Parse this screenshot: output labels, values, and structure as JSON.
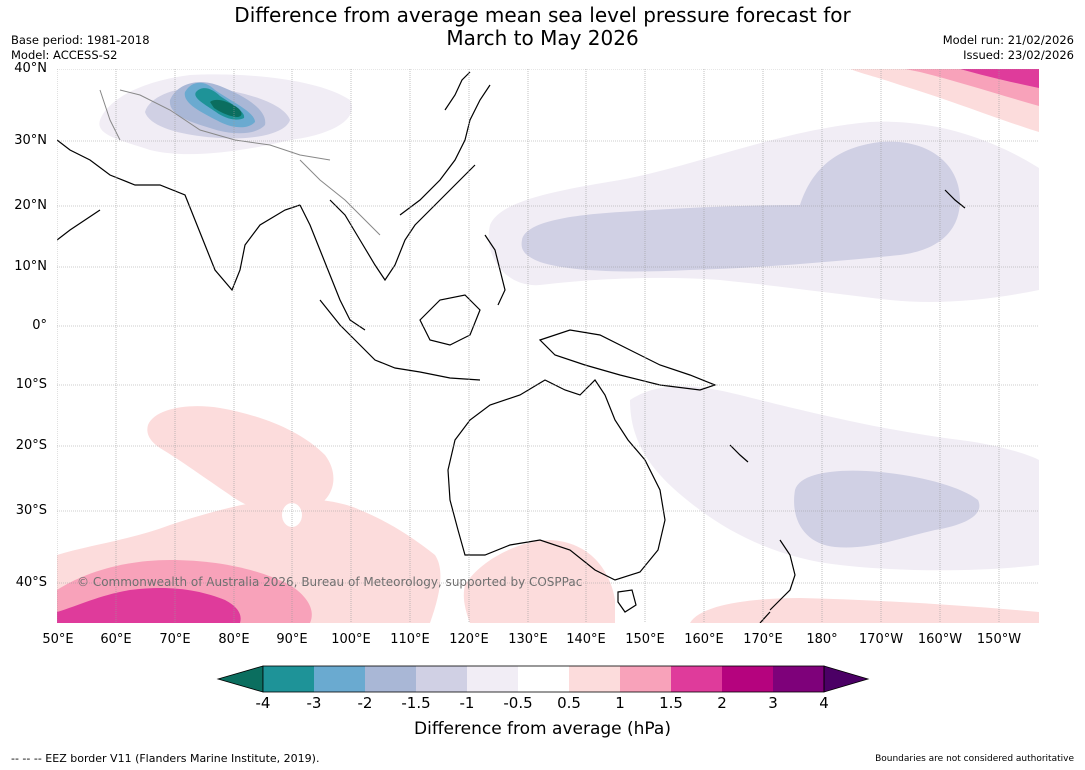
{
  "title_line1": "Difference from average mean sea level pressure forecast for",
  "title_line2": "March to May 2026",
  "base_period": "Base period: 1981-2018",
  "model": "Model: ACCESS-S2",
  "model_run": "Model run: 21/02/2026",
  "issued": "Issued: 23/02/2026",
  "copyright": "© Commonwealth of Australia 2026, Bureau of Meteorology, supported by COSPPac",
  "lat_labels": [
    "40°N",
    "30°N",
    "20°N",
    "10°N",
    "0°",
    "10°S",
    "20°S",
    "30°S",
    "40°S"
  ],
  "lon_labels": [
    "50°E",
    "60°E",
    "70°E",
    "80°E",
    "90°E",
    "100°E",
    "110°E",
    "120°E",
    "130°E",
    "140°E",
    "150°E",
    "160°E",
    "170°E",
    "180°",
    "170°W",
    "160°W",
    "150°W"
  ],
  "colorbar": {
    "title": "Difference from average (hPa)",
    "tick_labels": [
      "-4",
      "-3",
      "-2",
      "-1.5",
      "-1",
      "-0.5",
      "0.5",
      "1",
      "1.5",
      "2",
      "3",
      "4"
    ],
    "colors": {
      "below_min": "#0b6e5f",
      "m4_m3": "#1e9398",
      "m3_m2": "#6aaad0",
      "m2_m15": "#a9b7d6",
      "m15_m1": "#d0d0e4",
      "m1_m05": "#f1edf5",
      "m05_05": "#ffffff",
      "p05_1": "#fcdcdc",
      "p1_15": "#f8a2ba",
      "p15_2": "#df3b9b",
      "p2_3": "#b5037e",
      "p3_4": "#7e017a",
      "above_max": "#4b0065"
    }
  },
  "footer_left": "--  --  -- EEZ border V11 (Flanders Marine Institute, 2019).",
  "footer_right": "Boundaries are not considered authoritative"
}
